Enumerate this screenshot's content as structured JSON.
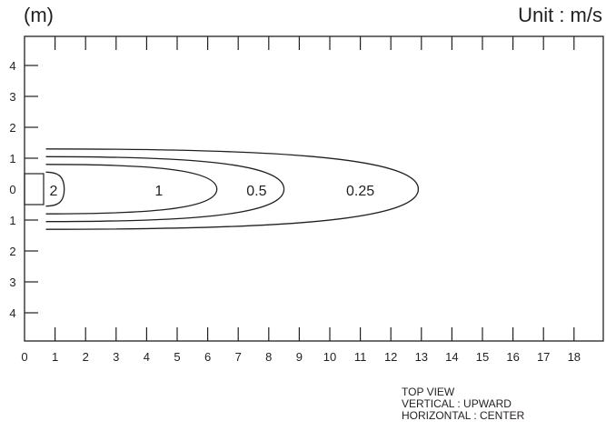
{
  "header": {
    "left_unit": "(m)",
    "right_unit": "Unit : m/s"
  },
  "notes": {
    "line1": "TOP VIEW",
    "line2": "VERTICAL : UPWARD",
    "line3": "HORIZONTAL : CENTER"
  },
  "x_axis": {
    "ticks": [
      "0",
      "1",
      "2",
      "3",
      "4",
      "5",
      "6",
      "7",
      "8",
      "9",
      "10",
      "11",
      "12",
      "13",
      "14",
      "15",
      "16",
      "17",
      "18"
    ]
  },
  "y_axis": {
    "ticks": [
      {
        "value": 4,
        "label": "4"
      },
      {
        "value": 3,
        "label": "3"
      },
      {
        "value": 2,
        "label": "2"
      },
      {
        "value": 1,
        "label": "1"
      },
      {
        "value": 0,
        "label": "0"
      },
      {
        "value": -1,
        "label": "1"
      },
      {
        "value": -2,
        "label": "2"
      },
      {
        "value": -3,
        "label": "3"
      },
      {
        "value": -4,
        "label": "4"
      }
    ]
  },
  "contours": [
    {
      "label": "2",
      "reach_m": 1.3,
      "half_width_m": 0.55
    },
    {
      "label": "1",
      "reach_m": 6.3,
      "half_width_m": 0.8
    },
    {
      "label": "0.5",
      "reach_m": 8.5,
      "half_width_m": 1.05
    },
    {
      "label": "0.25",
      "reach_m": 12.9,
      "half_width_m": 1.3
    }
  ],
  "colors": {
    "line": "#231f20",
    "background": "#ffffff"
  }
}
